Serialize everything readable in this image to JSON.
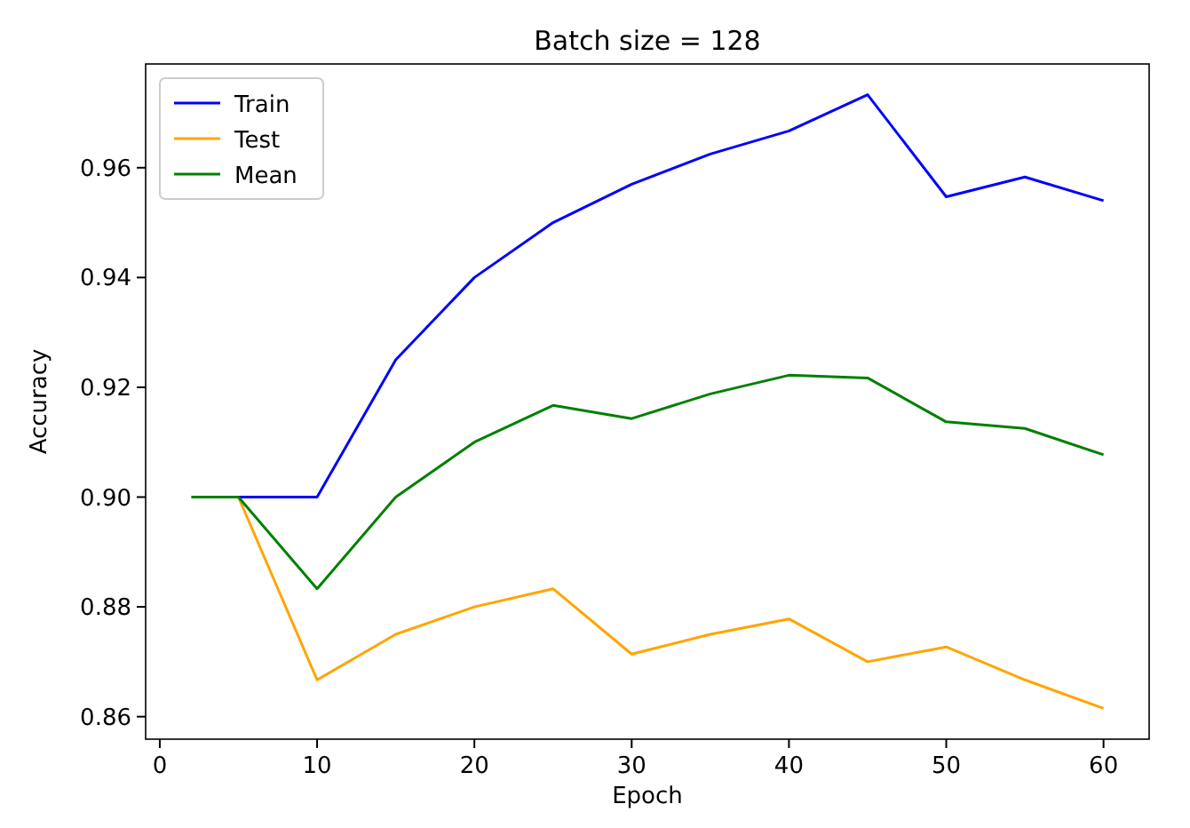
{
  "chart_data": {
    "type": "line",
    "title": "Batch size = 128",
    "xlabel": "Epoch",
    "ylabel": "Accuracy",
    "x": [
      2,
      5,
      10,
      15,
      20,
      25,
      30,
      35,
      40,
      45,
      50,
      55,
      60
    ],
    "series": [
      {
        "name": "Train",
        "color": "#0000ff",
        "values": [
          null,
          0.9,
          0.9,
          0.925,
          0.94,
          0.95,
          0.957,
          0.9625,
          0.9667,
          0.9733,
          0.9547,
          0.9583,
          0.954
        ]
      },
      {
        "name": "Test",
        "color": "#ffa500",
        "values": [
          null,
          0.9,
          0.8667,
          0.875,
          0.88,
          0.8833,
          0.8714,
          0.875,
          0.8778,
          0.87,
          0.8727,
          0.8667,
          0.8615
        ]
      },
      {
        "name": "Mean",
        "color": "#008000",
        "values": [
          0.9,
          0.9,
          0.8833,
          0.9,
          0.91,
          0.9167,
          0.9143,
          0.9188,
          0.9222,
          0.9217,
          0.9137,
          0.9125,
          0.9077
        ]
      }
    ],
    "xlim": [
      -0.9,
      62.9
    ],
    "ylim": [
      0.8559,
      0.9789
    ],
    "xticks": [
      0,
      10,
      20,
      30,
      40,
      50,
      60
    ],
    "yticks": [
      {
        "value": 0.86,
        "label": "0.86"
      },
      {
        "value": 0.88,
        "label": "0.88"
      },
      {
        "value": 0.9,
        "label": "0.90"
      },
      {
        "value": 0.92,
        "label": "0.92"
      },
      {
        "value": 0.94,
        "label": "0.94"
      },
      {
        "value": 0.96,
        "label": "0.96"
      }
    ],
    "legend": "top left",
    "grid": false,
    "marker": "none",
    "line_style": "solid"
  }
}
